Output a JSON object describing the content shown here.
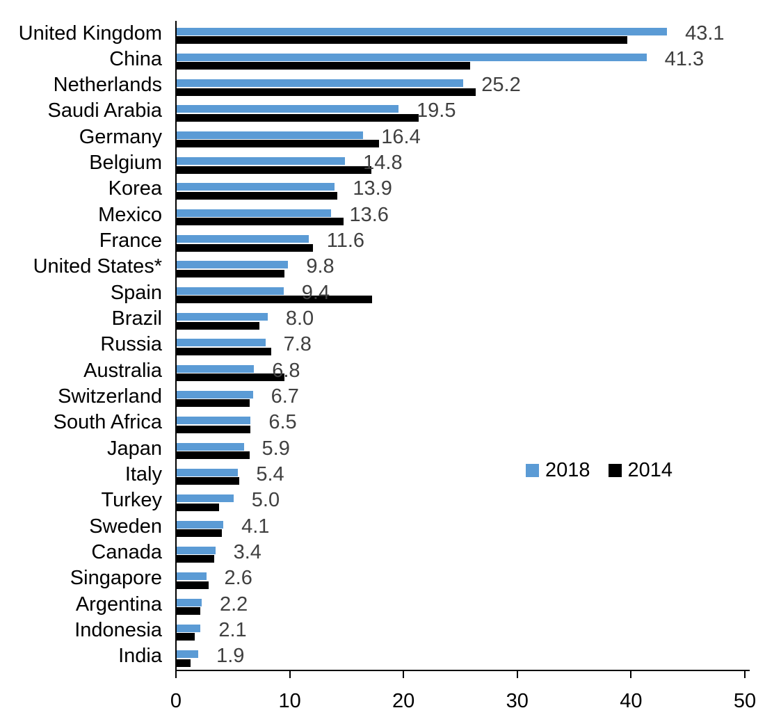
{
  "chart_data": {
    "type": "bar",
    "orientation": "horizontal",
    "title": "",
    "categories": [
      "United Kingdom",
      "China",
      "Netherlands",
      "Saudi Arabia",
      "Germany",
      "Belgium",
      "Korea",
      "Mexico",
      "France",
      "United States*",
      "Spain",
      "Brazil",
      "Russia",
      "Australia",
      "Switzerland",
      "South Africa",
      "Japan",
      "Italy",
      "Turkey",
      "Sweden",
      "Canada",
      "Singapore",
      "Argentina",
      "Indonesia",
      "India"
    ],
    "series": [
      {
        "name": "2018",
        "color": "#5B9BD5",
        "values": [
          43.1,
          41.3,
          25.2,
          19.5,
          16.4,
          14.8,
          13.9,
          13.6,
          11.6,
          9.8,
          9.4,
          8.0,
          7.8,
          6.8,
          6.7,
          6.5,
          5.9,
          5.4,
          5.0,
          4.1,
          3.4,
          2.6,
          2.2,
          2.1,
          1.9
        ]
      },
      {
        "name": "2014",
        "color": "#000000",
        "values": [
          39.6,
          25.8,
          26.3,
          21.3,
          17.8,
          17.1,
          14.1,
          14.7,
          12.0,
          9.5,
          17.2,
          7.3,
          8.3,
          9.5,
          6.4,
          6.5,
          6.4,
          5.5,
          3.7,
          4.0,
          3.3,
          2.8,
          2.1,
          1.6,
          1.2
        ]
      }
    ],
    "data_labels": [
      "43.1",
      "41.3",
      "25.2",
      "19.5",
      "16.4",
      "14.8",
      "13.9",
      "13.6",
      "11.6",
      "9.8",
      "9.4",
      "8.0",
      "7.8",
      "6.8",
      "6.7",
      "6.5",
      "5.9",
      "5.4",
      "5.0",
      "4.1",
      "3.4",
      "2.6",
      "2.2",
      "2.1",
      "1.9"
    ],
    "data_labels_series": "2018",
    "xlim": [
      0,
      50
    ],
    "x_ticks": [
      "0",
      "10",
      "20",
      "30",
      "40",
      "50"
    ],
    "grid": false,
    "legend": {
      "position": "center-right",
      "entries": [
        {
          "label": "2018",
          "color": "#5B9BD5"
        },
        {
          "label": "2014",
          "color": "#000000"
        }
      ]
    }
  },
  "colors": {
    "background": "#FFFFFF",
    "bar_2018": "#5B9BD5",
    "bar_2014": "#000000",
    "value_label": "#404040",
    "axis": "#000000",
    "text": "#000000"
  }
}
